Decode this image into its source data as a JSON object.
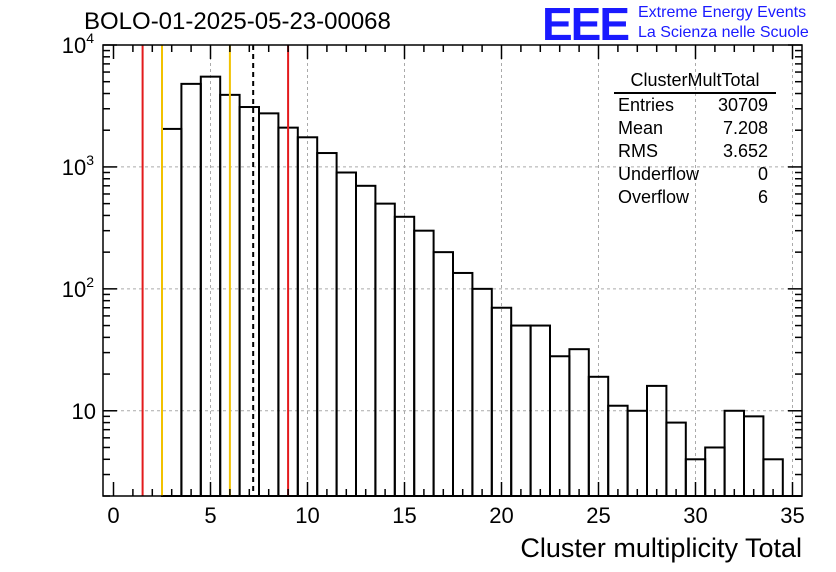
{
  "title": "BOLO-01-2025-05-23-00068",
  "logo": {
    "mark": "EEE",
    "line1": "Extreme Energy Events",
    "line2": "La Scienza nelle Scuole"
  },
  "stats": {
    "name": "ClusterMultTotal",
    "rows": [
      {
        "label": "Entries",
        "value": "30709"
      },
      {
        "label": "Mean",
        "value": "7.208"
      },
      {
        "label": "RMS",
        "value": "3.652"
      },
      {
        "label": "Underflow",
        "value": "0"
      },
      {
        "label": "Overflow",
        "value": "6"
      }
    ]
  },
  "chart_data": {
    "type": "histogram",
    "title": "BOLO-01-2025-05-23-00068",
    "xlabel": "Cluster multiplicity Total",
    "ylabel": "",
    "yscale": "log",
    "xlim": [
      0,
      35
    ],
    "ylim": [
      2,
      10000
    ],
    "grid": true,
    "x_ticks": [
      0,
      5,
      10,
      15,
      20,
      25,
      30,
      35
    ],
    "x_tick_labels": [
      "0",
      "5",
      "10",
      "15",
      "20",
      "25",
      "30",
      "35"
    ],
    "y_ticks": [
      10,
      100,
      1000,
      10000
    ],
    "y_tick_labels": [
      {
        "base": "",
        "exp": "",
        "text": "10"
      },
      {
        "base": "10",
        "exp": "2",
        "text": "10²"
      },
      {
        "base": "10",
        "exp": "3",
        "text": "10³"
      },
      {
        "base": "10",
        "exp": "4",
        "text": "10⁴"
      }
    ],
    "bin_width": 1,
    "bins": [
      {
        "x0": 2.5,
        "value": 2050
      },
      {
        "x0": 3.5,
        "value": 4800
      },
      {
        "x0": 4.5,
        "value": 5500
      },
      {
        "x0": 5.5,
        "value": 3900
      },
      {
        "x0": 6.5,
        "value": 3100
      },
      {
        "x0": 7.5,
        "value": 2750
      },
      {
        "x0": 8.5,
        "value": 2100
      },
      {
        "x0": 9.5,
        "value": 1750
      },
      {
        "x0": 10.5,
        "value": 1300
      },
      {
        "x0": 11.5,
        "value": 900
      },
      {
        "x0": 12.5,
        "value": 700
      },
      {
        "x0": 13.5,
        "value": 500
      },
      {
        "x0": 14.5,
        "value": 390
      },
      {
        "x0": 15.5,
        "value": 300
      },
      {
        "x0": 16.5,
        "value": 200
      },
      {
        "x0": 17.5,
        "value": 135
      },
      {
        "x0": 18.5,
        "value": 100
      },
      {
        "x0": 19.5,
        "value": 70
      },
      {
        "x0": 20.5,
        "value": 50
      },
      {
        "x0": 21.5,
        "value": 50
      },
      {
        "x0": 22.5,
        "value": 28
      },
      {
        "x0": 23.5,
        "value": 32
      },
      {
        "x0": 24.5,
        "value": 19
      },
      {
        "x0": 25.5,
        "value": 11
      },
      {
        "x0": 26.5,
        "value": 10
      },
      {
        "x0": 27.5,
        "value": 16
      },
      {
        "x0": 28.5,
        "value": 8
      },
      {
        "x0": 29.5,
        "value": 4
      },
      {
        "x0": 30.5,
        "value": 5
      },
      {
        "x0": 31.5,
        "value": 10
      },
      {
        "x0": 32.5,
        "value": 9
      },
      {
        "x0": 33.5,
        "value": 4
      },
      {
        "x0": 34.5,
        "value": 0
      }
    ],
    "markers": [
      {
        "name": "red-line-1",
        "x": 1.5,
        "color": "#e31a1c",
        "style": "solid"
      },
      {
        "name": "yellow-line-1",
        "x": 2.5,
        "color": "#f2c200",
        "style": "solid"
      },
      {
        "name": "yellow-line-2",
        "x": 6.0,
        "color": "#f2c200",
        "style": "solid"
      },
      {
        "name": "mean-line",
        "x": 7.2,
        "color": "#000000",
        "style": "dashed"
      },
      {
        "name": "red-line-2",
        "x": 9.0,
        "color": "#e31a1c",
        "style": "solid"
      }
    ]
  }
}
